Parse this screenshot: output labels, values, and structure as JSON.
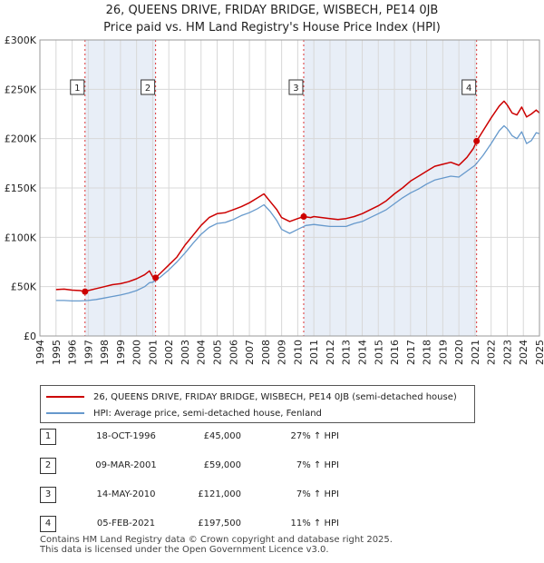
{
  "title_line1": "26, QUEENS DRIVE, FRIDAY BRIDGE, WISBECH, PE14 0JB",
  "title_line2": "Price paid vs. HM Land Registry's House Price Index (HPI)",
  "chart_data": {
    "type": "line",
    "title": "26, QUEENS DRIVE, FRIDAY BRIDGE, WISBECH, PE14 0JB — Price paid vs. HM Land Registry's House Price Index (HPI)",
    "xlim": [
      1994,
      2025
    ],
    "ylim": [
      0,
      300000
    ],
    "x_ticks": [
      1994,
      1995,
      1996,
      1997,
      1998,
      1999,
      2000,
      2001,
      2002,
      2003,
      2004,
      2005,
      2006,
      2007,
      2008,
      2009,
      2010,
      2011,
      2012,
      2013,
      2014,
      2015,
      2016,
      2017,
      2018,
      2019,
      2020,
      2021,
      2022,
      2023,
      2024,
      2025
    ],
    "y_ticks": [
      0,
      50000,
      100000,
      150000,
      200000,
      250000,
      300000
    ],
    "y_tick_labels": [
      "£0",
      "£50K",
      "£100K",
      "£150K",
      "£200K",
      "£250K",
      "£300K"
    ],
    "grid": true,
    "series": [
      {
        "name": "26, QUEENS DRIVE, FRIDAY BRIDGE, WISBECH, PE14 0JB (semi-detached house)",
        "color": "#cc0000",
        "points": [
          [
            1995.0,
            47000
          ],
          [
            1995.5,
            47500
          ],
          [
            1996.0,
            46500
          ],
          [
            1996.5,
            46000
          ],
          [
            1996.8,
            45000
          ],
          [
            1997.0,
            46000
          ],
          [
            1997.5,
            48000
          ],
          [
            1998.0,
            50000
          ],
          [
            1998.5,
            52000
          ],
          [
            1999.0,
            53000
          ],
          [
            1999.5,
            55000
          ],
          [
            2000.0,
            58000
          ],
          [
            2000.5,
            62000
          ],
          [
            2000.8,
            66000
          ],
          [
            2001.0,
            60000
          ],
          [
            2001.18,
            59000
          ],
          [
            2001.5,
            64000
          ],
          [
            2002.0,
            72000
          ],
          [
            2002.5,
            80000
          ],
          [
            2003.0,
            92000
          ],
          [
            2003.5,
            102000
          ],
          [
            2004.0,
            112000
          ],
          [
            2004.5,
            120000
          ],
          [
            2005.0,
            124000
          ],
          [
            2005.5,
            125000
          ],
          [
            2006.0,
            128000
          ],
          [
            2006.5,
            131000
          ],
          [
            2007.0,
            135000
          ],
          [
            2007.5,
            140000
          ],
          [
            2007.9,
            144000
          ],
          [
            2008.3,
            136000
          ],
          [
            2008.7,
            128000
          ],
          [
            2009.0,
            120000
          ],
          [
            2009.5,
            116000
          ],
          [
            2010.0,
            119000
          ],
          [
            2010.37,
            121000
          ],
          [
            2010.8,
            120000
          ],
          [
            2011.0,
            121000
          ],
          [
            2011.5,
            120000
          ],
          [
            2012.0,
            119000
          ],
          [
            2012.5,
            118000
          ],
          [
            2013.0,
            119000
          ],
          [
            2013.5,
            121000
          ],
          [
            2014.0,
            124000
          ],
          [
            2014.5,
            128000
          ],
          [
            2015.0,
            132000
          ],
          [
            2015.5,
            137000
          ],
          [
            2016.0,
            144000
          ],
          [
            2016.5,
            150000
          ],
          [
            2017.0,
            157000
          ],
          [
            2017.5,
            162000
          ],
          [
            2018.0,
            167000
          ],
          [
            2018.5,
            172000
          ],
          [
            2019.0,
            174000
          ],
          [
            2019.5,
            176000
          ],
          [
            2020.0,
            173000
          ],
          [
            2020.5,
            181000
          ],
          [
            2020.9,
            190000
          ],
          [
            2021.1,
            197500
          ],
          [
            2021.5,
            208000
          ],
          [
            2022.0,
            221000
          ],
          [
            2022.5,
            233000
          ],
          [
            2022.8,
            238000
          ],
          [
            2023.0,
            234000
          ],
          [
            2023.3,
            226000
          ],
          [
            2023.6,
            224000
          ],
          [
            2023.9,
            232000
          ],
          [
            2024.2,
            222000
          ],
          [
            2024.5,
            225000
          ],
          [
            2024.8,
            229000
          ],
          [
            2025.0,
            226000
          ]
        ]
      },
      {
        "name": "HPI: Average price, semi-detached house, Fenland",
        "color": "#6699cc",
        "points": [
          [
            1995.0,
            36000
          ],
          [
            1995.5,
            36000
          ],
          [
            1996.0,
            35500
          ],
          [
            1996.5,
            35500
          ],
          [
            1997.0,
            36000
          ],
          [
            1997.5,
            37000
          ],
          [
            1998.0,
            38500
          ],
          [
            1998.5,
            40000
          ],
          [
            1999.0,
            41500
          ],
          [
            1999.5,
            43500
          ],
          [
            2000.0,
            46000
          ],
          [
            2000.5,
            50000
          ],
          [
            2000.8,
            54000
          ],
          [
            2001.0,
            54500
          ],
          [
            2001.5,
            60000
          ],
          [
            2002.0,
            67000
          ],
          [
            2002.5,
            75000
          ],
          [
            2003.0,
            84000
          ],
          [
            2003.5,
            94000
          ],
          [
            2004.0,
            103000
          ],
          [
            2004.5,
            110000
          ],
          [
            2005.0,
            114000
          ],
          [
            2005.5,
            115000
          ],
          [
            2006.0,
            118000
          ],
          [
            2006.5,
            122000
          ],
          [
            2007.0,
            125000
          ],
          [
            2007.5,
            129000
          ],
          [
            2007.9,
            133000
          ],
          [
            2008.3,
            126000
          ],
          [
            2008.7,
            117000
          ],
          [
            2009.0,
            108000
          ],
          [
            2009.5,
            104000
          ],
          [
            2010.0,
            108000
          ],
          [
            2010.5,
            112000
          ],
          [
            2011.0,
            113000
          ],
          [
            2011.5,
            112000
          ],
          [
            2012.0,
            111000
          ],
          [
            2012.5,
            111000
          ],
          [
            2013.0,
            111000
          ],
          [
            2013.5,
            114000
          ],
          [
            2014.0,
            116000
          ],
          [
            2014.5,
            120000
          ],
          [
            2015.0,
            124000
          ],
          [
            2015.5,
            128000
          ],
          [
            2016.0,
            134000
          ],
          [
            2016.5,
            140000
          ],
          [
            2017.0,
            145000
          ],
          [
            2017.5,
            149000
          ],
          [
            2018.0,
            154000
          ],
          [
            2018.5,
            158000
          ],
          [
            2019.0,
            160000
          ],
          [
            2019.5,
            162000
          ],
          [
            2020.0,
            161000
          ],
          [
            2020.5,
            167000
          ],
          [
            2021.0,
            173000
          ],
          [
            2021.5,
            183000
          ],
          [
            2022.0,
            195000
          ],
          [
            2022.5,
            208000
          ],
          [
            2022.8,
            213000
          ],
          [
            2023.0,
            210000
          ],
          [
            2023.3,
            203000
          ],
          [
            2023.6,
            200000
          ],
          [
            2023.9,
            207000
          ],
          [
            2024.2,
            195000
          ],
          [
            2024.5,
            198000
          ],
          [
            2024.8,
            206000
          ],
          [
            2025.0,
            205000
          ]
        ]
      }
    ],
    "sales": [
      {
        "marker": "1",
        "x": 1996.8,
        "price": 45000
      },
      {
        "marker": "2",
        "x": 2001.18,
        "price": 59000
      },
      {
        "marker": "3",
        "x": 2010.37,
        "price": 121000
      },
      {
        "marker": "4",
        "x": 2021.1,
        "price": 197500
      }
    ],
    "shaded_spans": [
      [
        1996.8,
        2001.18
      ],
      [
        2010.37,
        2021.1
      ]
    ]
  },
  "legend": {
    "items": [
      {
        "label": "26, QUEENS DRIVE, FRIDAY BRIDGE, WISBECH, PE14 0JB (semi-detached house)",
        "color": "#cc0000"
      },
      {
        "label": "HPI: Average price, semi-detached house, Fenland",
        "color": "#6699cc"
      }
    ]
  },
  "transactions": [
    {
      "num": "1",
      "date": "18-OCT-1996",
      "price": "£45,000",
      "hpi": "27% ↑ HPI"
    },
    {
      "num": "2",
      "date": "09-MAR-2001",
      "price": "£59,000",
      "hpi": "7% ↑ HPI"
    },
    {
      "num": "3",
      "date": "14-MAY-2010",
      "price": "£121,000",
      "hpi": "7% ↑ HPI"
    },
    {
      "num": "4",
      "date": "05-FEB-2021",
      "price": "£197,500",
      "hpi": "11% ↑ HPI"
    }
  ],
  "footer": {
    "line1": "Contains HM Land Registry data © Crown copyright and database right 2025.",
    "line2": "This data is licensed under the Open Government Licence v3.0."
  },
  "colors": {
    "property": "#cc0000",
    "hpi": "#6699cc",
    "shade": "#e8eef7",
    "grid": "#d8d8d8"
  }
}
